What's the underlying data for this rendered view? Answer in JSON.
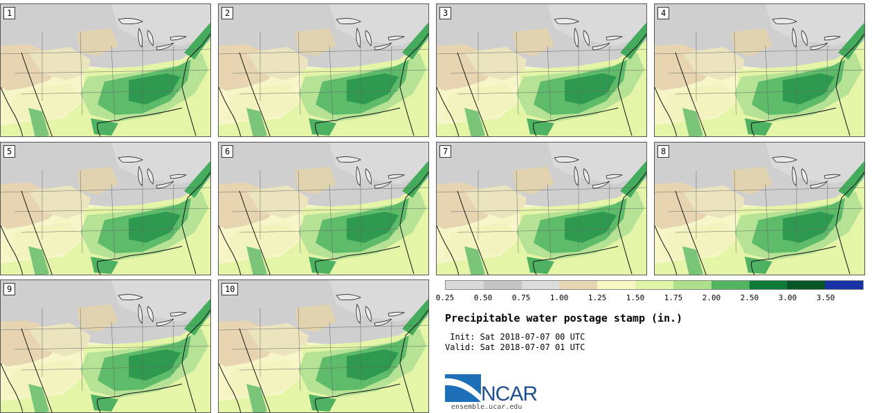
{
  "panels": [
    {
      "label": "1"
    },
    {
      "label": "2"
    },
    {
      "label": "3"
    },
    {
      "label": "4"
    },
    {
      "label": "5"
    },
    {
      "label": "6"
    },
    {
      "label": "7"
    },
    {
      "label": "8"
    },
    {
      "label": "9"
    },
    {
      "label": "10"
    }
  ],
  "legend": {
    "colors": [
      "#d9d9d9",
      "#c4c4c4",
      "#dcdcdc",
      "#e7d6b2",
      "#f7f7c4",
      "#dff5a8",
      "#aee08c",
      "#52b461",
      "#0e7c39",
      "#085628",
      "#1733a6"
    ],
    "ticks": [
      "0.25",
      "0.50",
      "0.75",
      "1.00",
      "1.25",
      "1.50",
      "1.75",
      "2.00",
      "2.50",
      "3.00",
      "3.50"
    ]
  },
  "title": "Precipitable water postage stamp (in.)",
  "init": " Init: Sat 2018-07-07 00 UTC",
  "valid": "Valid: Sat 2018-07-07 01 UTC",
  "logo": {
    "text": "NCAR"
  },
  "site": "ensemble.ucar.edu"
}
